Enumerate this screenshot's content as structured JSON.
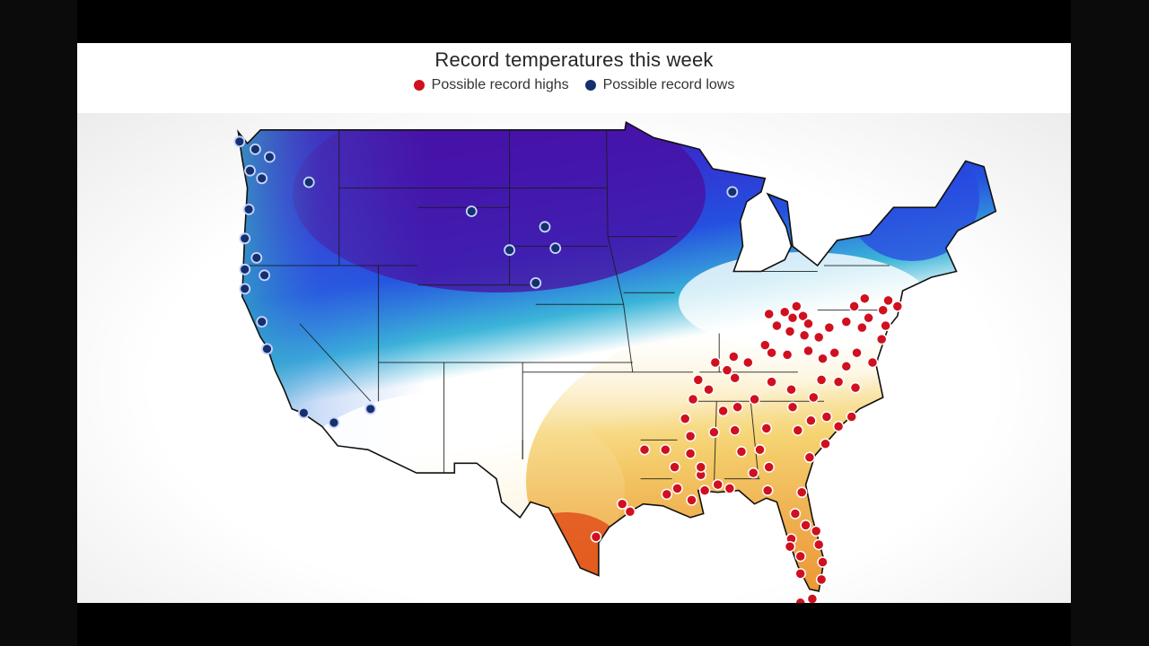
{
  "title": "Record temperatures this week",
  "legend": {
    "highs_label": "Possible record highs",
    "lows_label": "Possible record lows",
    "highs_color": "#d0101f",
    "lows_color": "#15306e"
  },
  "colors": {
    "cold_purple": "#5a17a8",
    "cold_blue": "#2538d8",
    "cool_teal": "#2fc4b8",
    "warm_yellow": "#f3c84a",
    "hot_orange": "#e2641c"
  },
  "record_highs": [
    {
      "lat": 39.5,
      "lon": -84.2
    },
    {
      "lat": 39.6,
      "lon": -83.0
    },
    {
      "lat": 39.3,
      "lon": -82.4
    },
    {
      "lat": 39.9,
      "lon": -82.1
    },
    {
      "lat": 39.4,
      "lon": -81.6
    },
    {
      "lat": 39.0,
      "lon": -81.2
    },
    {
      "lat": 38.9,
      "lon": -83.6
    },
    {
      "lat": 38.6,
      "lon": -82.6
    },
    {
      "lat": 38.4,
      "lon": -81.5
    },
    {
      "lat": 38.3,
      "lon": -80.4
    },
    {
      "lat": 38.8,
      "lon": -79.6
    },
    {
      "lat": 39.1,
      "lon": -78.3
    },
    {
      "lat": 38.8,
      "lon": -77.1
    },
    {
      "lat": 39.3,
      "lon": -76.6
    },
    {
      "lat": 39.7,
      "lon": -75.5
    },
    {
      "lat": 40.2,
      "lon": -75.1
    },
    {
      "lat": 39.9,
      "lon": -74.4
    },
    {
      "lat": 38.9,
      "lon": -75.3
    },
    {
      "lat": 38.2,
      "lon": -75.6
    },
    {
      "lat": 37.9,
      "lon": -84.5
    },
    {
      "lat": 37.5,
      "lon": -84.0
    },
    {
      "lat": 37.0,
      "lon": -85.8
    },
    {
      "lat": 37.3,
      "lon": -86.9
    },
    {
      "lat": 37.0,
      "lon": -88.3
    },
    {
      "lat": 36.6,
      "lon": -87.4
    },
    {
      "lat": 37.4,
      "lon": -82.8
    },
    {
      "lat": 37.6,
      "lon": -81.2
    },
    {
      "lat": 37.2,
      "lon": -80.1
    },
    {
      "lat": 37.5,
      "lon": -79.2
    },
    {
      "lat": 37.5,
      "lon": -77.5
    },
    {
      "lat": 37.0,
      "lon": -76.3
    },
    {
      "lat": 36.8,
      "lon": -78.3
    },
    {
      "lat": 36.0,
      "lon": -78.9
    },
    {
      "lat": 35.7,
      "lon": -77.6
    },
    {
      "lat": 36.1,
      "lon": -80.2
    },
    {
      "lat": 35.2,
      "lon": -80.8
    },
    {
      "lat": 35.6,
      "lon": -82.5
    },
    {
      "lat": 36.0,
      "lon": -84.0
    },
    {
      "lat": 36.2,
      "lon": -86.8
    },
    {
      "lat": 35.1,
      "lon": -85.3
    },
    {
      "lat": 35.1,
      "lon": -90.0
    },
    {
      "lat": 35.6,
      "lon": -88.8
    },
    {
      "lat": 36.1,
      "lon": -89.6
    },
    {
      "lat": 34.7,
      "lon": -86.6
    },
    {
      "lat": 34.5,
      "lon": -87.7
    },
    {
      "lat": 34.7,
      "lon": -82.4
    },
    {
      "lat": 34.0,
      "lon": -81.0
    },
    {
      "lat": 34.2,
      "lon": -79.8
    },
    {
      "lat": 34.2,
      "lon": -77.9
    },
    {
      "lat": 33.7,
      "lon": -78.9
    },
    {
      "lat": 33.6,
      "lon": -84.4
    },
    {
      "lat": 33.5,
      "lon": -86.8
    },
    {
      "lat": 33.4,
      "lon": -88.4
    },
    {
      "lat": 33.2,
      "lon": -90.2
    },
    {
      "lat": 34.1,
      "lon": -90.6
    },
    {
      "lat": 33.5,
      "lon": -82.0
    },
    {
      "lat": 32.8,
      "lon": -79.9
    },
    {
      "lat": 32.5,
      "lon": -84.9
    },
    {
      "lat": 32.4,
      "lon": -86.3
    },
    {
      "lat": 32.3,
      "lon": -90.2
    },
    {
      "lat": 32.5,
      "lon": -92.1
    },
    {
      "lat": 32.5,
      "lon": -93.7
    },
    {
      "lat": 31.6,
      "lon": -91.4
    },
    {
      "lat": 31.2,
      "lon": -89.4
    },
    {
      "lat": 31.3,
      "lon": -85.4
    },
    {
      "lat": 31.6,
      "lon": -84.2
    },
    {
      "lat": 31.6,
      "lon": -89.4
    },
    {
      "lat": 32.1,
      "lon": -81.1
    },
    {
      "lat": 30.7,
      "lon": -88.1
    },
    {
      "lat": 30.5,
      "lon": -87.2
    },
    {
      "lat": 30.4,
      "lon": -89.1
    },
    {
      "lat": 30.4,
      "lon": -84.3
    },
    {
      "lat": 30.3,
      "lon": -81.7
    },
    {
      "lat": 30.5,
      "lon": -91.2
    },
    {
      "lat": 30.2,
      "lon": -92.0
    },
    {
      "lat": 29.9,
      "lon": -90.1
    },
    {
      "lat": 29.7,
      "lon": -95.4
    },
    {
      "lat": 29.3,
      "lon": -94.8
    },
    {
      "lat": 29.2,
      "lon": -82.2
    },
    {
      "lat": 28.6,
      "lon": -81.4
    },
    {
      "lat": 28.3,
      "lon": -80.6
    },
    {
      "lat": 27.9,
      "lon": -82.5
    },
    {
      "lat": 27.5,
      "lon": -82.6
    },
    {
      "lat": 27.6,
      "lon": -80.4
    },
    {
      "lat": 27.0,
      "lon": -81.8
    },
    {
      "lat": 26.7,
      "lon": -80.1
    },
    {
      "lat": 26.1,
      "lon": -81.8
    },
    {
      "lat": 25.8,
      "lon": -80.2
    },
    {
      "lat": 28.0,
      "lon": -97.4
    },
    {
      "lat": 24.6,
      "lon": -81.8
    },
    {
      "lat": 24.8,
      "lon": -80.9
    },
    {
      "lat": 39.9,
      "lon": -77.7
    },
    {
      "lat": 40.3,
      "lon": -76.9
    }
  ],
  "record_lows": [
    {
      "lat": 48.4,
      "lon": -124.6
    },
    {
      "lat": 48.0,
      "lon": -123.4
    },
    {
      "lat": 47.6,
      "lon": -122.3
    },
    {
      "lat": 46.9,
      "lon": -123.8
    },
    {
      "lat": 46.5,
      "lon": -122.9
    },
    {
      "lat": 46.3,
      "lon": -119.3
    },
    {
      "lat": 44.9,
      "lon": -123.9
    },
    {
      "lat": 43.4,
      "lon": -124.2
    },
    {
      "lat": 42.4,
      "lon": -123.3
    },
    {
      "lat": 41.8,
      "lon": -124.2
    },
    {
      "lat": 41.5,
      "lon": -122.7
    },
    {
      "lat": 40.8,
      "lon": -124.2
    },
    {
      "lat": 39.1,
      "lon": -122.9
    },
    {
      "lat": 37.7,
      "lon": -122.5
    },
    {
      "lat": 34.4,
      "lon": -119.7
    },
    {
      "lat": 33.9,
      "lon": -117.4
    },
    {
      "lat": 34.6,
      "lon": -114.6
    },
    {
      "lat": 44.8,
      "lon": -106.9
    },
    {
      "lat": 42.8,
      "lon": -104.0
    },
    {
      "lat": 44.0,
      "lon": -101.3
    },
    {
      "lat": 42.9,
      "lon": -100.5
    },
    {
      "lat": 41.1,
      "lon": -102.0
    },
    {
      "lat": 45.8,
      "lon": -87.0
    }
  ]
}
